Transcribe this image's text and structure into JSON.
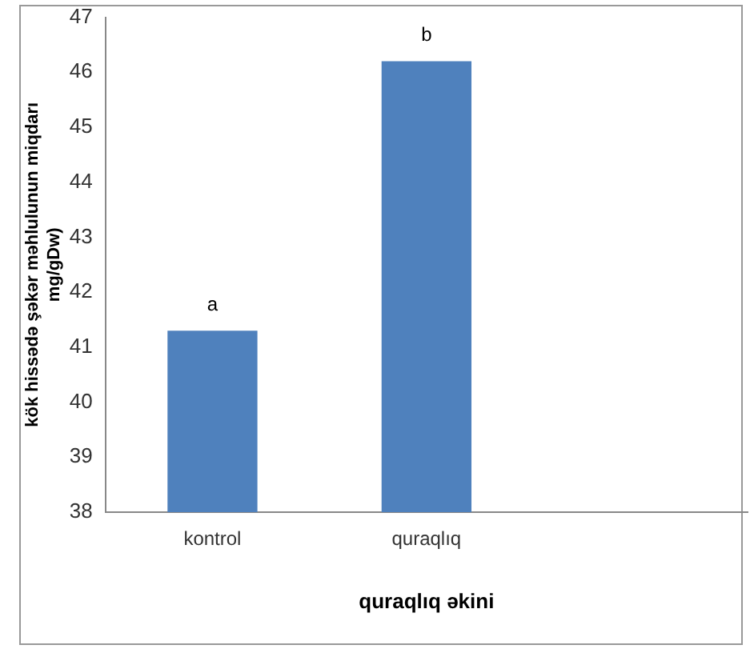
{
  "chart_data": {
    "type": "bar",
    "xlabel": "quraqlıq əkini",
    "ylabel": "kök hissədə şəkər məhlulunun miqdarı\nmg/gDw)",
    "categories": [
      "kontrol",
      "quraqlıq",
      null
    ],
    "values": [
      41.3,
      46.2,
      null
    ],
    "color": "#4f81bd",
    "ylim": [
      38,
      47
    ],
    "yticks": [
      38,
      39,
      40,
      41,
      42,
      43,
      44,
      45,
      46,
      47
    ],
    "grid": false,
    "annotations": [
      {
        "text": "a",
        "x": "kontrol",
        "y": 41.3
      },
      {
        "text": "b",
        "x": "quraqlıq",
        "y": 46.2
      }
    ]
  }
}
